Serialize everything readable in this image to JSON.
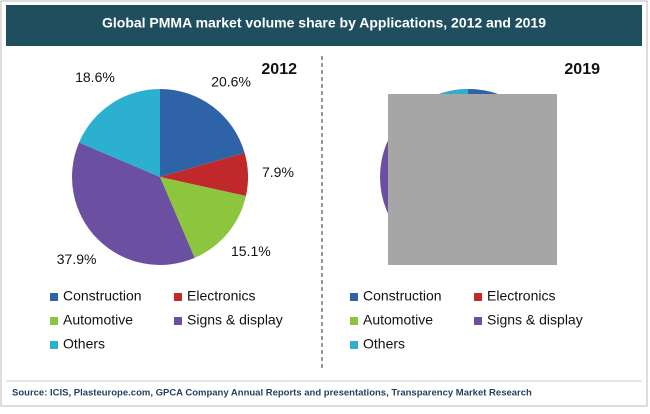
{
  "header": {
    "title": "Global PMMA market volume share by Applications, 2012 and 2019"
  },
  "chart_data": [
    {
      "type": "pie",
      "title": "2012",
      "categories": [
        "Construction",
        "Electronics",
        "Automotive",
        "Signs & display",
        "Others"
      ],
      "values": [
        20.6,
        7.9,
        15.1,
        37.9,
        18.6
      ],
      "value_labels": [
        "20.6%",
        "7.9%",
        "15.1%",
        "37.9%",
        "18.6%"
      ],
      "colors": [
        "#2f63a8",
        "#c0282a",
        "#8cc63f",
        "#6b4fa0",
        "#2bb0d0"
      ]
    },
    {
      "type": "pie",
      "title": "2019",
      "categories": [
        "Construction",
        "Electronics",
        "Automotive",
        "Signs & display",
        "Others"
      ],
      "colors": [
        "#2f63a8",
        "#c0282a",
        "#8cc63f",
        "#6b4fa0",
        "#2bb0d0"
      ]
    }
  ],
  "footer": {
    "source": "Source: ICIS, Plasteurope.com, GPCA Company Annual Reports and presentations, Transparency Market Research"
  }
}
